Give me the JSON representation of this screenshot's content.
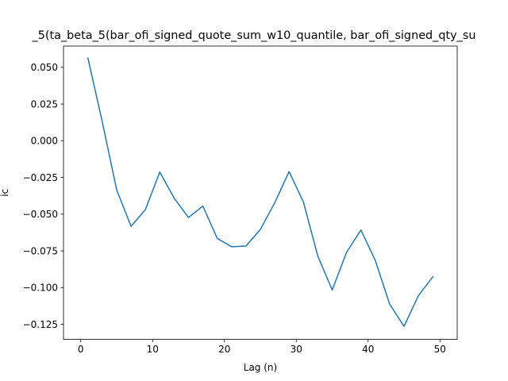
{
  "chart_data": {
    "type": "line",
    "title": "_5(ta_beta_5(bar_ofi_signed_quote_sum_w10_quantile, bar_ofi_signed_qty_su",
    "xlabel": "Lag (n)",
    "ylabel": "ic",
    "xlim": [
      -2.4,
      52.4
    ],
    "ylim": [
      -0.1353,
      0.0645
    ],
    "x_ticks": [
      0,
      10,
      20,
      30,
      40,
      50
    ],
    "x_tick_labels": [
      "0",
      "10",
      "20",
      "30",
      "40",
      "50"
    ],
    "y_ticks": [
      0.05,
      0.025,
      0.0,
      -0.025,
      -0.05,
      -0.075,
      -0.1,
      -0.125
    ],
    "y_tick_labels": [
      "0.050",
      "0.025",
      "0.000",
      "−0.025",
      "−0.050",
      "−0.075",
      "−0.100",
      "−0.125"
    ],
    "grid": false,
    "series": [
      {
        "color": "#1f77b4",
        "x": [
          1,
          3,
          5,
          7,
          9,
          11,
          13,
          15,
          17,
          19,
          21,
          23,
          25,
          27,
          29,
          31,
          33,
          35,
          37,
          39,
          41,
          43,
          45,
          47,
          49
        ],
        "y": [
          0.0563,
          0.0128,
          -0.0334,
          -0.0583,
          -0.0469,
          -0.0213,
          -0.0391,
          -0.0523,
          -0.0445,
          -0.0665,
          -0.0722,
          -0.0717,
          -0.0604,
          -0.0423,
          -0.021,
          -0.0418,
          -0.0786,
          -0.1016,
          -0.076,
          -0.0608,
          -0.0815,
          -0.1113,
          -0.1264,
          -0.1055,
          -0.0927
        ]
      }
    ]
  }
}
